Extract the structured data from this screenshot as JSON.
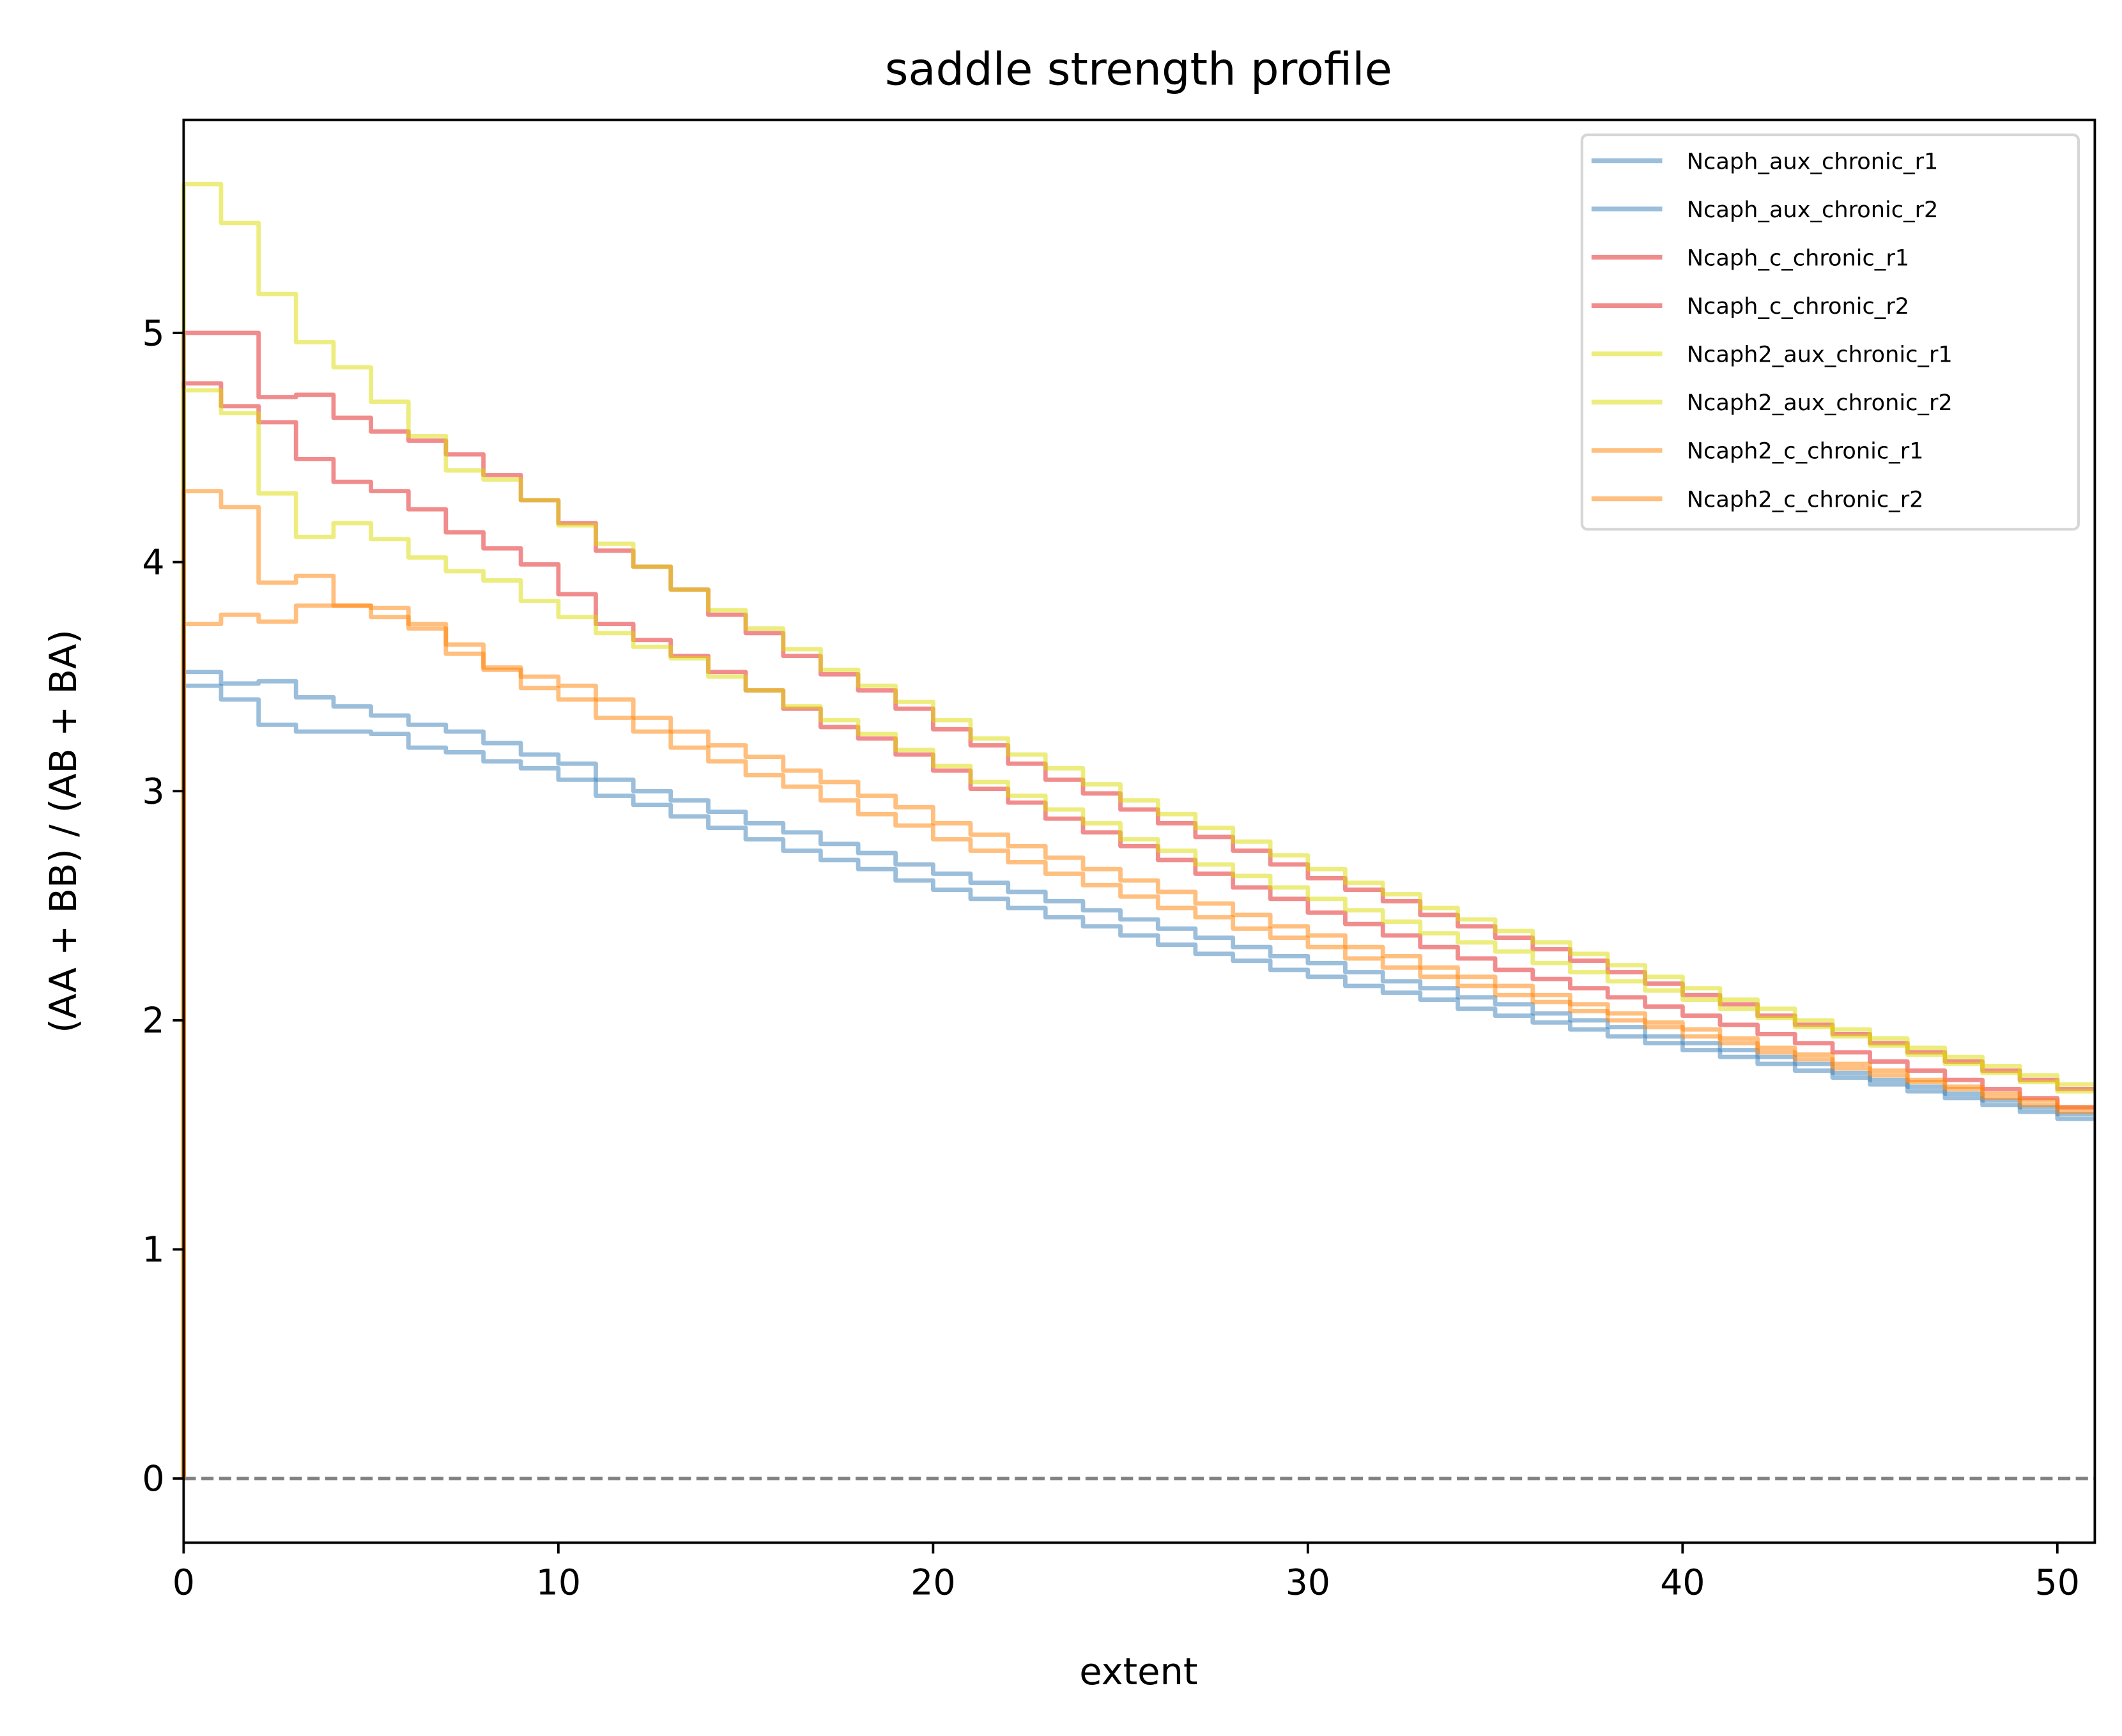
{
  "chart_data": {
    "type": "line",
    "step": "post",
    "title": "saddle strength profile",
    "xlabel": "extent",
    "ylabel": "(AA + BB) / (AB + BA)",
    "xlim": [
      0,
      51
    ],
    "ylim": [
      -0.28,
      5.93
    ],
    "xticks": [
      0,
      10,
      20,
      30,
      40,
      50
    ],
    "yticks": [
      0,
      1,
      2,
      3,
      4,
      5
    ],
    "grid": false,
    "legend_position": "top-right",
    "reference_line": {
      "y": 0,
      "style": "dashed",
      "color": "#808080"
    },
    "series": [
      {
        "name": "Ncaph_aux_chronic_r1",
        "color": "#377eb8",
        "values": [
          3.52,
          3.47,
          3.48,
          3.41,
          3.37,
          3.33,
          3.29,
          3.26,
          3.21,
          3.16,
          3.12,
          3.05,
          3.0,
          2.96,
          2.91,
          2.86,
          2.82,
          2.77,
          2.73,
          2.68,
          2.64,
          2.6,
          2.56,
          2.52,
          2.48,
          2.44,
          2.4,
          2.36,
          2.32,
          2.28,
          2.25,
          2.21,
          2.17,
          2.14,
          2.1,
          2.07,
          2.03,
          2.0,
          1.97,
          1.93,
          1.9,
          1.87,
          1.84,
          1.81,
          1.77,
          1.74,
          1.71,
          1.68,
          1.65,
          1.62,
          1.59
        ]
      },
      {
        "name": "Ncaph_aux_chronic_r2",
        "color": "#377eb8",
        "values": [
          3.46,
          3.4,
          3.29,
          3.26,
          3.26,
          3.25,
          3.19,
          3.17,
          3.13,
          3.1,
          3.05,
          2.98,
          2.94,
          2.89,
          2.84,
          2.79,
          2.74,
          2.7,
          2.66,
          2.61,
          2.57,
          2.53,
          2.49,
          2.45,
          2.41,
          2.37,
          2.33,
          2.29,
          2.26,
          2.22,
          2.19,
          2.15,
          2.12,
          2.09,
          2.05,
          2.02,
          1.99,
          1.96,
          1.93,
          1.9,
          1.87,
          1.84,
          1.81,
          1.78,
          1.75,
          1.72,
          1.69,
          1.66,
          1.63,
          1.6,
          1.57
        ]
      },
      {
        "name": "Ncaph_c_chronic_r1",
        "color": "#e41a1c",
        "values": [
          5.0,
          5.0,
          4.72,
          4.73,
          4.63,
          4.57,
          4.53,
          4.47,
          4.38,
          4.27,
          4.17,
          4.05,
          3.98,
          3.88,
          3.77,
          3.69,
          3.59,
          3.51,
          3.44,
          3.36,
          3.27,
          3.2,
          3.12,
          3.05,
          2.99,
          2.92,
          2.86,
          2.8,
          2.74,
          2.68,
          2.62,
          2.57,
          2.52,
          2.46,
          2.41,
          2.36,
          2.31,
          2.26,
          2.21,
          2.16,
          2.11,
          2.07,
          2.02,
          1.98,
          1.94,
          1.9,
          1.86,
          1.82,
          1.78,
          1.74,
          1.7
        ]
      },
      {
        "name": "Ncaph_c_chronic_r2",
        "color": "#e41a1c",
        "values": [
          4.78,
          4.68,
          4.61,
          4.45,
          4.35,
          4.31,
          4.23,
          4.13,
          4.06,
          3.99,
          3.86,
          3.73,
          3.66,
          3.59,
          3.52,
          3.44,
          3.36,
          3.28,
          3.23,
          3.16,
          3.09,
          3.01,
          2.95,
          2.88,
          2.82,
          2.76,
          2.7,
          2.64,
          2.58,
          2.53,
          2.47,
          2.42,
          2.37,
          2.32,
          2.27,
          2.22,
          2.18,
          2.14,
          2.1,
          2.06,
          2.02,
          1.98,
          1.94,
          1.9,
          1.86,
          1.82,
          1.78,
          1.74,
          1.7,
          1.66,
          1.62
        ]
      },
      {
        "name": "Ncaph2_aux_chronic_r1",
        "color": "#dcdc00",
        "values": [
          5.65,
          5.48,
          5.17,
          4.96,
          4.85,
          4.7,
          4.55,
          4.4,
          4.36,
          4.27,
          4.16,
          4.08,
          3.98,
          3.88,
          3.79,
          3.71,
          3.62,
          3.53,
          3.46,
          3.39,
          3.31,
          3.23,
          3.16,
          3.1,
          3.03,
          2.96,
          2.9,
          2.84,
          2.78,
          2.72,
          2.66,
          2.6,
          2.55,
          2.49,
          2.44,
          2.39,
          2.34,
          2.29,
          2.24,
          2.19,
          2.14,
          2.09,
          2.05,
          2.0,
          1.96,
          1.92,
          1.88,
          1.84,
          1.8,
          1.76,
          1.72
        ]
      },
      {
        "name": "Ncaph2_aux_chronic_r2",
        "color": "#dcdc00",
        "values": [
          4.75,
          4.65,
          4.3,
          4.11,
          4.17,
          4.1,
          4.02,
          3.96,
          3.92,
          3.83,
          3.76,
          3.69,
          3.63,
          3.58,
          3.5,
          3.44,
          3.37,
          3.31,
          3.25,
          3.18,
          3.11,
          3.04,
          2.98,
          2.92,
          2.86,
          2.79,
          2.74,
          2.68,
          2.63,
          2.58,
          2.53,
          2.48,
          2.43,
          2.38,
          2.34,
          2.3,
          2.25,
          2.21,
          2.17,
          2.13,
          2.09,
          2.05,
          2.01,
          1.97,
          1.93,
          1.89,
          1.85,
          1.81,
          1.77,
          1.73,
          1.69
        ]
      },
      {
        "name": "Ncaph2_c_chronic_r1",
        "color": "#ff7f00",
        "values": [
          4.31,
          4.24,
          3.91,
          3.94,
          3.81,
          3.76,
          3.71,
          3.64,
          3.54,
          3.5,
          3.46,
          3.4,
          3.32,
          3.26,
          3.2,
          3.15,
          3.09,
          3.04,
          2.98,
          2.93,
          2.86,
          2.81,
          2.76,
          2.71,
          2.66,
          2.61,
          2.56,
          2.51,
          2.46,
          2.41,
          2.37,
          2.32,
          2.28,
          2.23,
          2.19,
          2.15,
          2.11,
          2.07,
          2.03,
          1.99,
          1.96,
          1.92,
          1.88,
          1.85,
          1.81,
          1.78,
          1.74,
          1.71,
          1.68,
          1.65,
          1.62
        ]
      },
      {
        "name": "Ncaph2_c_chronic_r2",
        "color": "#ff7f00",
        "values": [
          3.73,
          3.77,
          3.74,
          3.81,
          3.81,
          3.8,
          3.73,
          3.6,
          3.53,
          3.45,
          3.4,
          3.32,
          3.26,
          3.19,
          3.13,
          3.07,
          3.02,
          2.96,
          2.9,
          2.85,
          2.79,
          2.74,
          2.69,
          2.64,
          2.59,
          2.54,
          2.49,
          2.45,
          2.4,
          2.36,
          2.32,
          2.27,
          2.23,
          2.19,
          2.15,
          2.11,
          2.08,
          2.04,
          2.0,
          1.97,
          1.93,
          1.9,
          1.86,
          1.83,
          1.79,
          1.76,
          1.73,
          1.7,
          1.66,
          1.63,
          1.6
        ]
      }
    ]
  }
}
